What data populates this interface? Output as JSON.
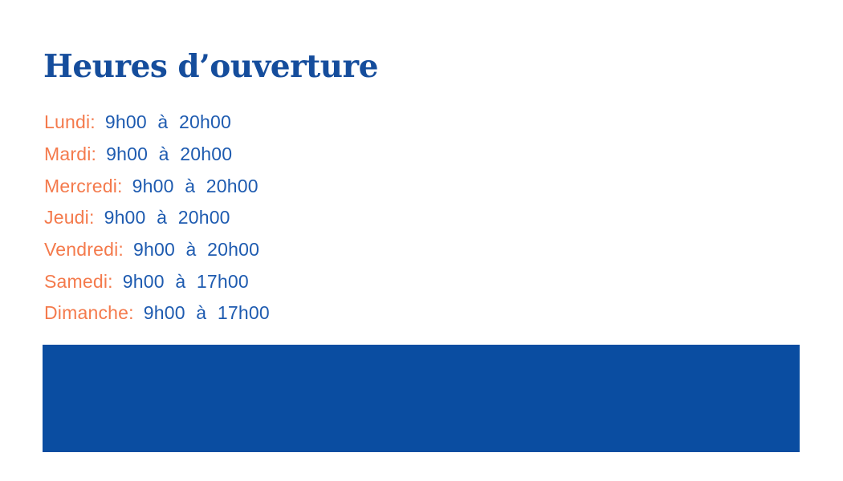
{
  "page": {
    "title": "Heures d’ouverture"
  },
  "hours": {
    "items": [
      {
        "day": "Lundi:",
        "time": "9h00 à 20h00"
      },
      {
        "day": "Mardi:",
        "time": "9h00 à 20h00"
      },
      {
        "day": "Mercredi:",
        "time": "9h00 à 20h00"
      },
      {
        "day": "Jeudi:",
        "time": "9h00 à 20h00"
      },
      {
        "day": "Vendredi:",
        "time": "9h00 à 20h00"
      },
      {
        "day": "Samedi:",
        "time": "9h00 à 17h00"
      },
      {
        "day": "Dimanche:",
        "time": "9h00 à 17h00"
      }
    ]
  },
  "colors": {
    "title_blue": "#154D9C",
    "day_orange": "#F47A4C",
    "time_blue": "#1E5BB0",
    "banner_blue": "#0A4DA1",
    "page_bg": "#FFFFFF"
  }
}
